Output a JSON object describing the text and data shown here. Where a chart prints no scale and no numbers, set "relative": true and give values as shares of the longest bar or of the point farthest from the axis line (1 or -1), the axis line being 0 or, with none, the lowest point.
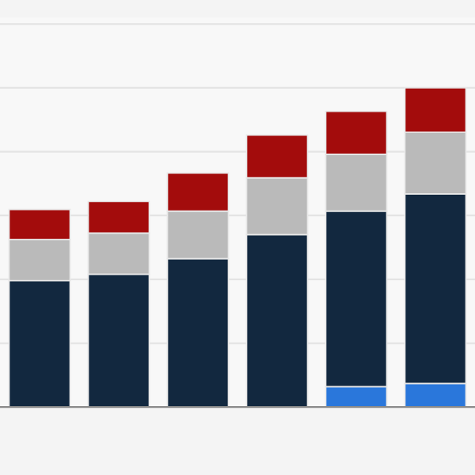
{
  "chart_data": {
    "type": "bar",
    "stacked": true,
    "relative": true,
    "grid": "y",
    "categories": [
      null,
      null,
      null,
      null,
      null,
      null
    ],
    "series": [
      {
        "color": "#2a77db",
        "values": [
          0,
          0,
          0,
          0,
          0.064,
          0.074
        ]
      },
      {
        "color": "#12283f",
        "values": [
          0.396,
          0.416,
          0.465,
          0.54,
          0.55,
          0.594
        ]
      },
      {
        "color": "#bababa",
        "values": [
          0.129,
          0.129,
          0.149,
          0.178,
          0.178,
          0.193
        ]
      },
      {
        "color": "#a30c0c",
        "values": [
          0.094,
          0.099,
          0.119,
          0.134,
          0.134,
          0.139
        ]
      }
    ]
  }
}
